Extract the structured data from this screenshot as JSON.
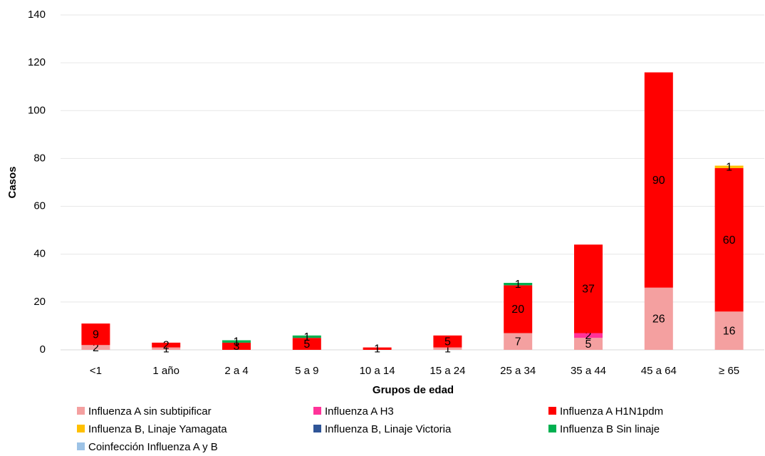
{
  "chart_data": {
    "type": "stacked_bar",
    "y_label": "Casos",
    "x_label": "Grupos de edad",
    "categories": [
      "<1",
      "1 año",
      "2 a 4",
      "5 a 9",
      "10 a 14",
      "15 a 24",
      "25 a 34",
      "35 a 44",
      "45 a 64",
      "≥ 65"
    ],
    "series": [
      {
        "name": "Influenza A sin subtipificar",
        "color": "#f4a0a0",
        "values": [
          2,
          1,
          0,
          0,
          0,
          1,
          7,
          5,
          26,
          16
        ]
      },
      {
        "name": "Influenza A H3",
        "color": "#ff3399",
        "values": [
          0,
          0,
          0,
          0,
          0,
          0,
          0,
          2,
          0,
          0
        ]
      },
      {
        "name": "Influenza A H1N1pdm",
        "color": "#ff0000",
        "values": [
          9,
          2,
          3,
          5,
          1,
          5,
          20,
          37,
          90,
          60
        ]
      },
      {
        "name": "Influenza B, Linaje Yamagata",
        "color": "#ffc000",
        "values": [
          0,
          0,
          0,
          0,
          0,
          0,
          0,
          0,
          0,
          1
        ]
      },
      {
        "name": "Influenza B, Linaje Victoria",
        "color": "#2f5597",
        "values": [
          0,
          0,
          0,
          0,
          0,
          0,
          0,
          0,
          0,
          0
        ]
      },
      {
        "name": "Influenza B Sin linaje",
        "color": "#00b050",
        "values": [
          0,
          0,
          1,
          1,
          0,
          0,
          1,
          0,
          0,
          0
        ]
      },
      {
        "name": "Coinfección Influenza A y B",
        "color": "#9dc3e6",
        "values": [
          0,
          0,
          0,
          0,
          0,
          0,
          0,
          0,
          0,
          0
        ]
      }
    ],
    "ylim": [
      0,
      140
    ],
    "yticks": [
      0,
      20,
      40,
      60,
      80,
      100,
      120,
      140
    ],
    "grid": true
  }
}
